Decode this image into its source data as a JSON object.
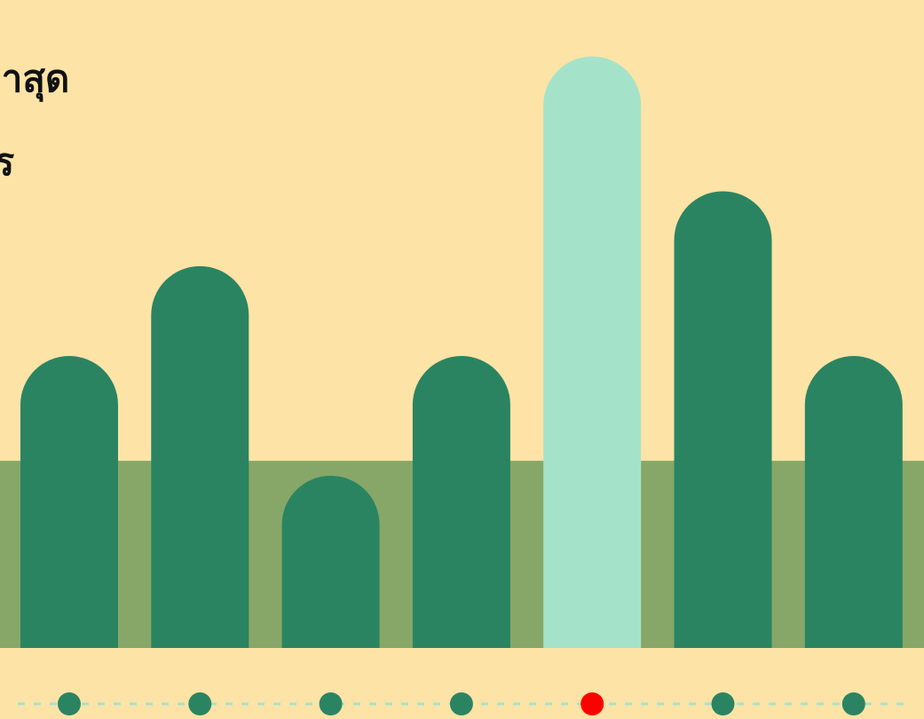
{
  "title_lines": [
    "ล่าสุด",
    "าร"
  ],
  "colors": {
    "background": "#fee3a6",
    "band": "#87a768",
    "bar": "#2a8462",
    "bar_highlight": "#a4e3ca",
    "dot": "#2a8462",
    "dot_active": "#ff0000",
    "dash": "#a4e3ca",
    "text": "#111111"
  },
  "chart_data": {
    "type": "bar",
    "title": "ล่าสุด าร",
    "categories": [
      "",
      "",
      "",
      "",
      "",
      "",
      ""
    ],
    "values": [
      3.9,
      5.1,
      2.3,
      3.9,
      7.9,
      6.1,
      3.9
    ],
    "highlight_index": 4,
    "ylim": [
      0,
      8.5
    ],
    "grid": false,
    "legend": "none",
    "band_value": 2.5,
    "pagination": {
      "count": 7,
      "active_index": 4
    }
  }
}
